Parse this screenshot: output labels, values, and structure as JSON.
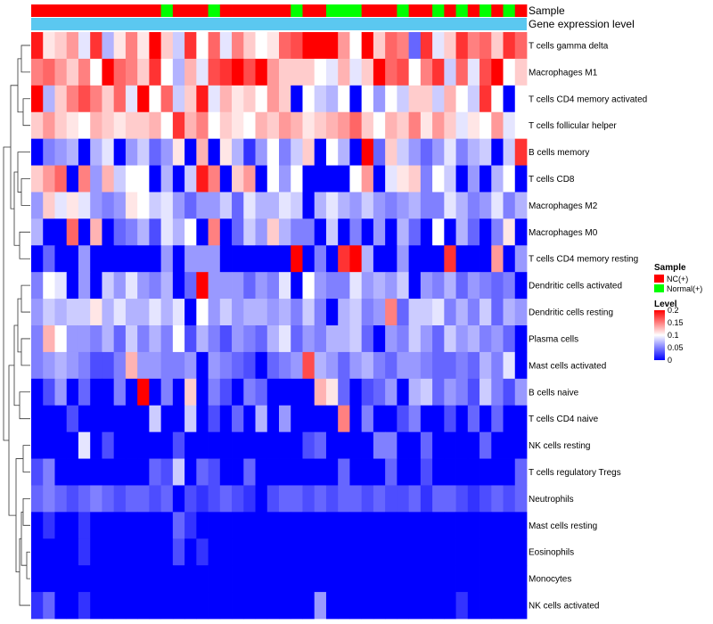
{
  "chart_data": {
    "type": "heatmap",
    "annotation_labels": {
      "sample": "Sample",
      "level": "Gene expression level"
    },
    "rows": [
      "T cells gamma delta",
      "Macrophages M1",
      "T cells CD4 memory activated",
      "T cells follicular helper",
      "B cells memory",
      "T cells CD8",
      "Macrophages M2",
      "Macrophages M0",
      "T cells CD4 memory resting",
      "Dendritic cells activated",
      "Dendritic cells resting",
      "Plasma cells",
      "Mast cells activated",
      "B cells naive",
      "T cells CD4 naive",
      "NK cells resting",
      "T cells regulatory  Tregs",
      "Neutrophils",
      "Mast cells resting",
      "Eosinophils",
      "Monocytes",
      "NK cells activated"
    ],
    "sample_groups": [
      "NC",
      "NC",
      "NC",
      "NC",
      "NC",
      "NC",
      "NC",
      "NC",
      "NC",
      "NC",
      "NC",
      "Normal",
      "NC",
      "NC",
      "NC",
      "Normal",
      "NC",
      "NC",
      "NC",
      "NC",
      "NC",
      "NC",
      "Normal",
      "NC",
      "NC",
      "Normal",
      "Normal",
      "Normal",
      "NC",
      "NC",
      "NC",
      "Normal",
      "NC",
      "NC",
      "Normal",
      "NC",
      "Normal",
      "NC",
      "Normal",
      "NC",
      "Normal",
      "NC"
    ],
    "values": [
      [
        0.19,
        0.11,
        0.12,
        0.14,
        0.09,
        0.18,
        0.07,
        0.11,
        0.15,
        0.11,
        0.2,
        0.12,
        0.08,
        0.18,
        0.1,
        0.16,
        0.09,
        0.15,
        0.12,
        0.1,
        0.11,
        0.16,
        0.17,
        0.2,
        0.2,
        0.2,
        0.14,
        0.1,
        0.2,
        0.12,
        0.16,
        0.15,
        0.04,
        0.18,
        0.09,
        0.12,
        0.18,
        0.15,
        0.16,
        0.12,
        0.18,
        0.16
      ],
      [
        0.15,
        0.16,
        0.14,
        0.12,
        0.15,
        0.1,
        0.2,
        0.16,
        0.15,
        0.12,
        0.18,
        0.1,
        0.07,
        0.13,
        0.09,
        0.17,
        0.18,
        0.2,
        0.17,
        0.2,
        0.14,
        0.12,
        0.12,
        0.12,
        0.1,
        0.09,
        0.13,
        0.09,
        0.12,
        0.2,
        0.16,
        0.17,
        0.1,
        0.15,
        0.18,
        0.08,
        0.16,
        0.09,
        0.17,
        0.2,
        0.1,
        0.12
      ],
      [
        0.2,
        0.07,
        0.12,
        0.15,
        0.17,
        0.15,
        0.12,
        0.16,
        0.09,
        0.2,
        0.1,
        0.16,
        0.08,
        0.12,
        0.19,
        0.09,
        0.13,
        0.11,
        0.12,
        0.1,
        0.14,
        0.12,
        0.0,
        0.1,
        0.08,
        0.07,
        0.1,
        0.0,
        0.1,
        0.06,
        0.1,
        0.08,
        0.12,
        0.12,
        0.08,
        0.13,
        0.1,
        0.08,
        0.18,
        0.1,
        0.0,
        0.1
      ],
      [
        0.12,
        0.14,
        0.12,
        0.11,
        0.1,
        0.13,
        0.12,
        0.11,
        0.12,
        0.12,
        0.13,
        0.1,
        0.18,
        0.13,
        0.15,
        0.1,
        0.12,
        0.11,
        0.1,
        0.13,
        0.12,
        0.14,
        0.13,
        0.11,
        0.12,
        0.13,
        0.14,
        0.16,
        0.12,
        0.1,
        0.13,
        0.12,
        0.15,
        0.11,
        0.14,
        0.12,
        0.09,
        0.11,
        0.1,
        0.14,
        0.09,
        0.1
      ],
      [
        0.0,
        0.05,
        0.06,
        0.07,
        0.0,
        0.07,
        0.09,
        0.0,
        0.06,
        0.08,
        0.04,
        0.06,
        0.11,
        0.0,
        0.13,
        0.0,
        0.11,
        0.07,
        0.02,
        0.06,
        0.1,
        0.05,
        0.08,
        0.12,
        0.0,
        0.1,
        0.07,
        0.0,
        0.2,
        0.04,
        0.12,
        0.08,
        0.06,
        0.04,
        0.06,
        0.09,
        0.05,
        0.07,
        0.08,
        0.0,
        0.08,
        0.18
      ],
      [
        0.12,
        0.14,
        0.16,
        0.0,
        0.15,
        0.06,
        0.13,
        0.08,
        0.1,
        0.1,
        0.0,
        0.07,
        0.0,
        0.08,
        0.19,
        0.15,
        0.0,
        0.12,
        0.14,
        0.0,
        0.1,
        0.06,
        0.1,
        0.0,
        0.0,
        0.0,
        0.0,
        0.1,
        0.14,
        0.0,
        0.09,
        0.11,
        0.12,
        0.05,
        0.1,
        0.08,
        0.0,
        0.06,
        0.0,
        0.07,
        0.1,
        0.0
      ],
      [
        0.06,
        0.12,
        0.09,
        0.11,
        0.09,
        0.06,
        0.05,
        0.06,
        0.11,
        0.1,
        0.08,
        0.09,
        0.06,
        0.04,
        0.06,
        0.06,
        0.08,
        0.04,
        0.09,
        0.07,
        0.07,
        0.09,
        0.08,
        0.0,
        0.07,
        0.09,
        0.07,
        0.06,
        0.08,
        0.06,
        0.05,
        0.06,
        0.07,
        0.05,
        0.05,
        0.09,
        0.07,
        0.05,
        0.06,
        0.09,
        0.05,
        0.07
      ],
      [
        0.07,
        0.0,
        0.0,
        0.16,
        0.0,
        0.13,
        0.0,
        0.04,
        0.05,
        0.07,
        0.03,
        0.09,
        0.07,
        0.1,
        0.0,
        0.15,
        0.0,
        0.04,
        0.08,
        0.06,
        0.12,
        0.07,
        0.05,
        0.05,
        0.0,
        0.08,
        0.0,
        0.05,
        0.0,
        0.06,
        0.0,
        0.07,
        0.04,
        0.0,
        0.1,
        0.0,
        0.07,
        0.04,
        0.0,
        0.05,
        0.11,
        0.0
      ],
      [
        0.0,
        0.04,
        0.0,
        0.0,
        0.06,
        0.0,
        0.0,
        0.0,
        0.0,
        0.0,
        0.0,
        0.06,
        0.0,
        0.06,
        0.06,
        0.06,
        0.0,
        0.0,
        0.0,
        0.0,
        0.0,
        0.0,
        0.2,
        0.0,
        0.05,
        0.0,
        0.18,
        0.2,
        0.07,
        0.0,
        0.0,
        0.06,
        0.0,
        0.0,
        0.0,
        0.18,
        0.0,
        0.0,
        0.0,
        0.14,
        0.0,
        0.06
      ],
      [
        0.05,
        0.1,
        0.09,
        0.0,
        0.06,
        0.0,
        0.08,
        0.06,
        0.09,
        0.06,
        0.05,
        0.07,
        0.0,
        0.04,
        0.2,
        0.06,
        0.06,
        0.06,
        0.04,
        0.06,
        0.05,
        0.09,
        0.0,
        0.1,
        0.06,
        0.05,
        0.05,
        0.09,
        0.06,
        0.07,
        0.06,
        0.08,
        0.0,
        0.06,
        0.05,
        0.07,
        0.04,
        0.06,
        0.05,
        0.04,
        0.05,
        0.0
      ],
      [
        0.06,
        0.08,
        0.07,
        0.08,
        0.08,
        0.11,
        0.07,
        0.09,
        0.07,
        0.07,
        0.09,
        0.07,
        0.09,
        0.0,
        0.1,
        0.06,
        0.08,
        0.06,
        0.07,
        0.07,
        0.06,
        0.07,
        0.05,
        0.08,
        0.05,
        0.0,
        0.07,
        0.08,
        0.05,
        0.06,
        0.15,
        0.04,
        0.08,
        0.08,
        0.09,
        0.05,
        0.07,
        0.05,
        0.08,
        0.04,
        0.07,
        0.06
      ],
      [
        0.05,
        0.13,
        0.1,
        0.06,
        0.06,
        0.05,
        0.07,
        0.04,
        0.08,
        0.05,
        0.07,
        0.05,
        0.1,
        0.03,
        0.07,
        0.05,
        0.03,
        0.06,
        0.05,
        0.04,
        0.07,
        0.09,
        0.04,
        0.06,
        0.05,
        0.07,
        0.07,
        0.08,
        0.04,
        0.0,
        0.06,
        0.05,
        0.08,
        0.06,
        0.04,
        0.08,
        0.06,
        0.07,
        0.05,
        0.06,
        0.04,
        0.0
      ],
      [
        0.05,
        0.06,
        0.07,
        0.06,
        0.05,
        0.03,
        0.03,
        0.05,
        0.13,
        0.06,
        0.06,
        0.05,
        0.05,
        0.06,
        0.0,
        0.06,
        0.05,
        0.04,
        0.03,
        0.0,
        0.04,
        0.05,
        0.06,
        0.17,
        0.07,
        0.06,
        0.04,
        0.06,
        0.07,
        0.05,
        0.04,
        0.06,
        0.06,
        0.05,
        0.04,
        0.04,
        0.05,
        0.04,
        0.07,
        0.05,
        0.09,
        0.0
      ],
      [
        0.0,
        0.03,
        0.06,
        0.0,
        0.04,
        0.0,
        0.0,
        0.05,
        0.0,
        0.2,
        0.0,
        0.05,
        0.0,
        0.12,
        0.0,
        0.05,
        0.03,
        0.0,
        0.05,
        0.04,
        0.0,
        0.0,
        0.0,
        0.0,
        0.13,
        0.11,
        0.04,
        0.0,
        0.03,
        0.04,
        0.06,
        0.0,
        0.07,
        0.08,
        0.04,
        0.06,
        0.05,
        0.03,
        0.08,
        0.05,
        0.03,
        0.06
      ],
      [
        0.0,
        0.0,
        0.0,
        0.03,
        0.0,
        0.0,
        0.0,
        0.0,
        0.0,
        0.0,
        0.08,
        0.0,
        0.0,
        0.08,
        0.0,
        0.03,
        0.0,
        0.04,
        0.0,
        0.07,
        0.0,
        0.06,
        0.0,
        0.0,
        0.0,
        0.0,
        0.15,
        0.0,
        0.05,
        0.0,
        0.0,
        0.03,
        0.05,
        0.0,
        0.0,
        0.03,
        0.0,
        0.04,
        0.0,
        0.04,
        0.0,
        0.0
      ],
      [
        0.0,
        0.0,
        0.0,
        0.0,
        0.09,
        0.0,
        0.03,
        0.0,
        0.0,
        0.0,
        0.0,
        0.0,
        0.03,
        0.0,
        0.0,
        0.0,
        0.0,
        0.0,
        0.0,
        0.0,
        0.0,
        0.0,
        0.0,
        0.03,
        0.04,
        0.0,
        0.0,
        0.0,
        0.0,
        0.05,
        0.05,
        0.0,
        0.0,
        0.04,
        0.0,
        0.0,
        0.0,
        0.0,
        0.04,
        0.0,
        0.0,
        0.0
      ],
      [
        0.03,
        0.05,
        0.0,
        0.0,
        0.0,
        0.0,
        0.0,
        0.0,
        0.0,
        0.0,
        0.04,
        0.03,
        0.08,
        0.0,
        0.04,
        0.03,
        0.0,
        0.0,
        0.04,
        0.0,
        0.0,
        0.0,
        0.0,
        0.0,
        0.0,
        0.0,
        0.04,
        0.0,
        0.0,
        0.0,
        0.04,
        0.0,
        0.0,
        0.03,
        0.0,
        0.0,
        0.0,
        0.0,
        0.0,
        0.0,
        0.0,
        0.04
      ],
      [
        0.04,
        0.05,
        0.04,
        0.03,
        0.04,
        0.05,
        0.04,
        0.03,
        0.04,
        0.04,
        0.03,
        0.04,
        0.0,
        0.03,
        0.02,
        0.03,
        0.04,
        0.03,
        0.02,
        0.0,
        0.03,
        0.04,
        0.04,
        0.03,
        0.04,
        0.03,
        0.04,
        0.04,
        0.03,
        0.04,
        0.03,
        0.03,
        0.04,
        0.02,
        0.04,
        0.04,
        0.03,
        0.02,
        0.03,
        0.04,
        0.03,
        0.04
      ],
      [
        0.0,
        0.02,
        0.0,
        0.0,
        0.02,
        0.0,
        0.0,
        0.0,
        0.0,
        0.0,
        0.0,
        0.0,
        0.04,
        0.02,
        0.0,
        0.0,
        0.0,
        0.0,
        0.0,
        0.0,
        0.0,
        0.0,
        0.0,
        0.0,
        0.0,
        0.0,
        0.0,
        0.0,
        0.0,
        0.0,
        0.0,
        0.0,
        0.0,
        0.0,
        0.0,
        0.0,
        0.0,
        0.0,
        0.0,
        0.0,
        0.0,
        0.0
      ],
      [
        0.0,
        0.0,
        0.0,
        0.0,
        0.02,
        0.0,
        0.0,
        0.0,
        0.0,
        0.0,
        0.0,
        0.0,
        0.03,
        0.0,
        0.02,
        0.0,
        0.0,
        0.0,
        0.0,
        0.0,
        0.0,
        0.0,
        0.0,
        0.0,
        0.0,
        0.0,
        0.0,
        0.0,
        0.0,
        0.0,
        0.0,
        0.0,
        0.0,
        0.0,
        0.0,
        0.0,
        0.0,
        0.0,
        0.0,
        0.0,
        0.0,
        0.0
      ],
      [
        0.0,
        0.0,
        0.0,
        0.0,
        0.0,
        0.0,
        0.0,
        0.0,
        0.0,
        0.0,
        0.0,
        0.0,
        0.0,
        0.0,
        0.0,
        0.0,
        0.0,
        0.0,
        0.0,
        0.0,
        0.0,
        0.0,
        0.0,
        0.0,
        0.0,
        0.0,
        0.0,
        0.0,
        0.0,
        0.0,
        0.0,
        0.0,
        0.0,
        0.0,
        0.0,
        0.0,
        0.0,
        0.0,
        0.0,
        0.0,
        0.0,
        0.0
      ],
      [
        0.02,
        0.04,
        0.0,
        0.0,
        0.02,
        0.0,
        0.0,
        0.0,
        0.0,
        0.0,
        0.0,
        0.0,
        0.0,
        0.0,
        0.0,
        0.0,
        0.0,
        0.0,
        0.0,
        0.0,
        0.0,
        0.0,
        0.0,
        0.0,
        0.06,
        0.0,
        0.0,
        0.0,
        0.0,
        0.0,
        0.0,
        0.0,
        0.0,
        0.0,
        0.0,
        0.0,
        0.02,
        0.0,
        0.0,
        0.0,
        0.0,
        0.0
      ]
    ],
    "color_scale": {
      "low": "#0000ff",
      "mid": "#ffffff",
      "high": "#ff0000",
      "min": 0,
      "mid_value": 0.1,
      "max": 0.2
    },
    "group_colors": {
      "NC": "#ff0000",
      "Normal": "#00ff00"
    },
    "level_bar_color": "#5bc8f0",
    "legend": {
      "sample_title": "Sample",
      "sample_entries": [
        "NC(+)",
        "Normal(+)"
      ],
      "level_title": "Level",
      "level_ticks": [
        "0.2",
        "0.15",
        "0.1",
        "0.05",
        "0"
      ],
      "level_tick_values": [
        0.2,
        0.15,
        0.1,
        0.05,
        0
      ]
    }
  }
}
